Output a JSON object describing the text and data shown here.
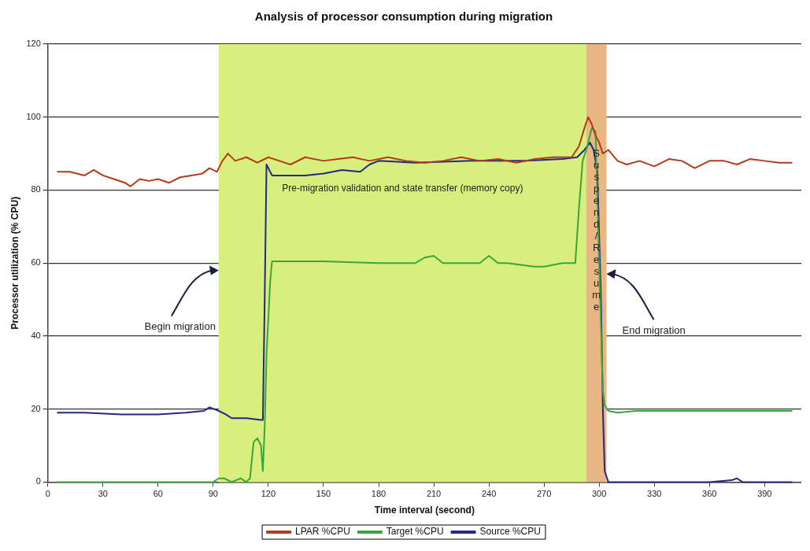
{
  "chart_data": {
    "type": "line",
    "title": "Analysis of processor consumption during migration",
    "xlabel": "Time interval (second)",
    "ylabel": "Processor utilization (% CPU)",
    "xlim": [
      0,
      410
    ],
    "xticks": [
      0,
      30,
      60,
      90,
      120,
      150,
      180,
      210,
      240,
      270,
      300,
      330,
      360,
      390
    ],
    "ylim": [
      0,
      120
    ],
    "yticks": [
      0,
      20,
      40,
      60,
      80,
      100,
      120
    ],
    "grid": "y",
    "legend": "bottom",
    "marker": "none",
    "line_style": "solid",
    "series": [
      {
        "name": "LPAR %CPU",
        "color": "#b23c17",
        "x": [
          5,
          12,
          20,
          25,
          30,
          36,
          42,
          45,
          50,
          55,
          60,
          66,
          72,
          78,
          84,
          88,
          92,
          95,
          98,
          102,
          108,
          114,
          120,
          126,
          132,
          140,
          150,
          158,
          166,
          175,
          185,
          195,
          205,
          215,
          225,
          235,
          245,
          255,
          265,
          275,
          285,
          289,
          292,
          294,
          296,
          298,
          300,
          302,
          305,
          310,
          315,
          322,
          330,
          338,
          345,
          352,
          360,
          368,
          375,
          382,
          390,
          398,
          405
        ],
        "values": [
          85,
          85,
          84,
          85.5,
          84,
          83,
          82,
          81,
          83,
          82.5,
          83,
          82,
          83.5,
          84,
          84.5,
          86,
          85,
          88,
          90,
          88,
          89,
          87.5,
          89,
          88,
          87,
          89,
          88,
          88.5,
          89,
          88,
          89,
          88,
          87.5,
          88,
          89,
          88,
          88.5,
          87.5,
          88.5,
          89,
          89,
          92,
          97,
          100,
          98,
          95,
          93,
          90,
          91,
          88,
          87,
          88,
          86.5,
          88.5,
          88,
          86,
          88,
          88,
          87,
          88.5,
          88,
          87.5,
          87.5
        ]
      },
      {
        "name": "Target %CPU",
        "color": "#3aa63a",
        "x": [
          5,
          30,
          60,
          90,
          93,
          96,
          100,
          105,
          108,
          110,
          112,
          114,
          116,
          117,
          118,
          119,
          121,
          122,
          130,
          150,
          180,
          200,
          205,
          210,
          215,
          220,
          235,
          240,
          245,
          250,
          265,
          270,
          275,
          280,
          287,
          289,
          291,
          293,
          296,
          298,
          300,
          302,
          303,
          305,
          310,
          320,
          340,
          360,
          380,
          405
        ],
        "values": [
          0,
          0,
          0,
          0,
          1,
          1,
          0,
          1,
          0,
          1,
          11,
          12,
          10,
          3,
          15,
          35,
          55,
          60.5,
          60.5,
          60.5,
          60,
          60,
          61.5,
          62,
          60,
          60,
          60,
          62,
          60,
          60,
          59,
          59,
          59.5,
          60,
          60,
          75,
          88,
          91,
          97,
          96,
          60,
          25,
          21,
          19.5,
          19,
          19.5,
          19.5,
          19.5,
          19.5,
          19.5
        ]
      },
      {
        "name": "Source %CPU",
        "color": "#23278a",
        "x": [
          5,
          20,
          40,
          60,
          75,
          85,
          88,
          93,
          97,
          100,
          108,
          116,
          117,
          118,
          119,
          120,
          122,
          130,
          140,
          150,
          160,
          170,
          175,
          180,
          200,
          230,
          260,
          280,
          288,
          292,
          295,
          297,
          299,
          301,
          302,
          303,
          305,
          330,
          360,
          372,
          375,
          378,
          405
        ],
        "values": [
          19,
          19,
          18.5,
          18.5,
          19,
          19.5,
          20.5,
          19.5,
          18.5,
          17.5,
          17.5,
          17,
          17,
          50,
          87,
          86,
          84,
          84,
          84,
          84.5,
          85.5,
          85,
          87,
          88,
          87.5,
          88,
          88,
          88.5,
          89,
          91,
          93,
          91,
          85,
          50,
          20,
          3,
          0,
          0,
          0,
          0.5,
          1,
          0,
          0
        ]
      }
    ],
    "bands": [
      {
        "axis": "x",
        "from": 93,
        "to": 293,
        "label": "Pre-migration validation and state transfer (memory copy)",
        "color": "#d8ef7e"
      },
      {
        "axis": "x",
        "from": 293,
        "to": 304,
        "label": "Suspend/Resume",
        "color": "#e8b784"
      }
    ],
    "annotations": [
      {
        "text": "Begin migration",
        "x": 93,
        "y": 58
      },
      {
        "text": "End migration",
        "x": 304,
        "y": 57
      }
    ]
  }
}
